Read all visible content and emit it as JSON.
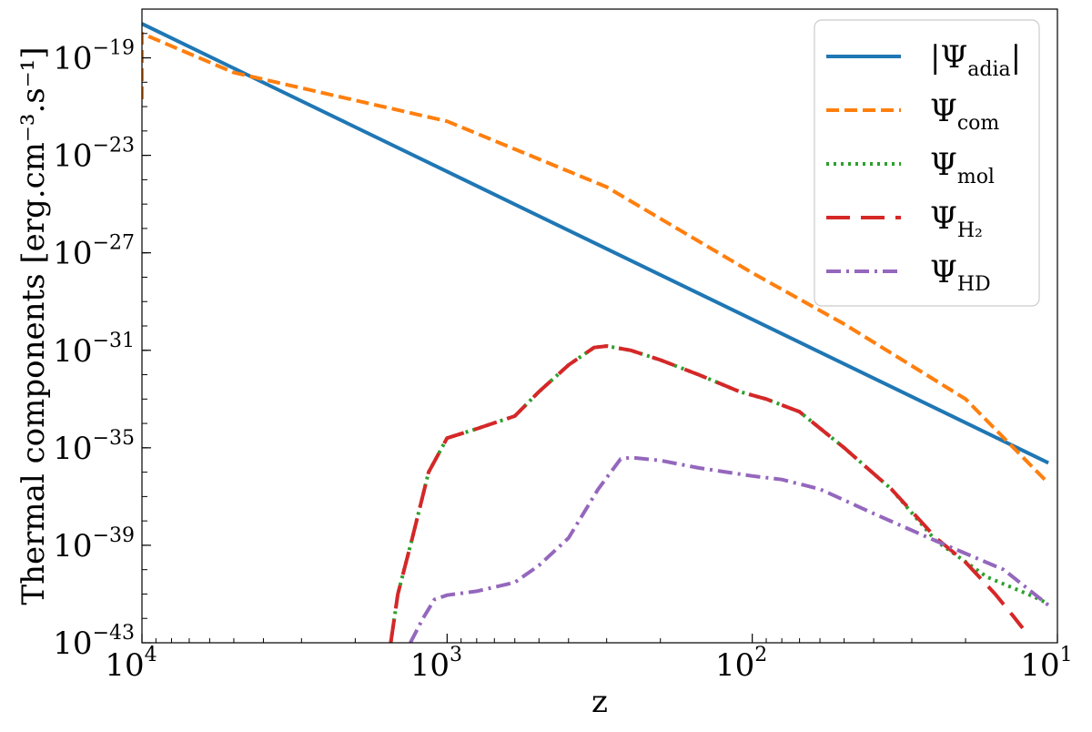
{
  "chart_data": {
    "type": "line",
    "xlabel": "z",
    "ylabel": "Thermal components [erg.cm⁻³.s⁻¹]",
    "x_scale": "log",
    "y_scale": "log",
    "x_reversed": true,
    "xlim": [
      10000,
      10
    ],
    "ylim": [
      1e-43,
      1e-17
    ],
    "x_ticks": [
      {
        "value": 10000,
        "base": "10",
        "exp": "4"
      },
      {
        "value": 1000,
        "base": "10",
        "exp": "3"
      },
      {
        "value": 100,
        "base": "10",
        "exp": "2"
      },
      {
        "value": 10,
        "base": "10",
        "exp": "1"
      }
    ],
    "y_ticks": [
      {
        "value": 1e-19,
        "base": "10",
        "exp": "−19"
      },
      {
        "value": 1e-23,
        "base": "10",
        "exp": "−23"
      },
      {
        "value": 1e-27,
        "base": "10",
        "exp": "−27"
      },
      {
        "value": 1e-31,
        "base": "10",
        "exp": "−31"
      },
      {
        "value": 1e-35,
        "base": "10",
        "exp": "−35"
      },
      {
        "value": 1e-39,
        "base": "10",
        "exp": "−39"
      },
      {
        "value": 1e-43,
        "base": "10",
        "exp": "−43"
      }
    ],
    "legend_position": "top-right",
    "series": [
      {
        "name": "|Ψadia|",
        "legend_main": "|Ψ",
        "legend_sub": "adia",
        "legend_tail": "|",
        "color": "#1f77b4",
        "dash": "solid",
        "points": [
          [
            10000,
            2.5e-18
          ],
          [
            10.7,
            2.4e-36
          ]
        ]
      },
      {
        "name": "Ψcom",
        "legend_main": "Ψ",
        "legend_sub": "com",
        "legend_tail": "",
        "color": "#ff7f0e",
        "dash": "dashed",
        "points": [
          [
            10000,
            2e-21
          ],
          [
            10000,
            1e-18
          ],
          [
            5000,
            2.5e-20
          ],
          [
            1000,
            2.5e-22
          ],
          [
            300,
            5e-25
          ],
          [
            100,
            1.5e-28
          ],
          [
            50,
            1.2e-30
          ],
          [
            20,
            1e-33
          ],
          [
            10.7,
            3.5e-37
          ]
        ]
      },
      {
        "name": "Ψmol",
        "legend_main": "Ψ",
        "legend_sub": "mol",
        "legend_tail": "",
        "color": "#2ca02c",
        "dash": "dotted",
        "points": [
          [
            1530,
            1e-43
          ],
          [
            1450,
            1e-41
          ],
          [
            1300,
            2e-39
          ],
          [
            1150,
            1e-36
          ],
          [
            1000,
            2.5e-35
          ],
          [
            800,
            6e-35
          ],
          [
            600,
            2e-34
          ],
          [
            500,
            2e-33
          ],
          [
            400,
            2.5e-32
          ],
          [
            330,
            1.3e-31
          ],
          [
            300,
            1.5e-31
          ],
          [
            250,
            1e-31
          ],
          [
            200,
            4e-32
          ],
          [
            150,
            1e-32
          ],
          [
            110,
            2e-33
          ],
          [
            90,
            1e-33
          ],
          [
            70,
            3e-34
          ],
          [
            50,
            1e-35
          ],
          [
            35,
            2e-37
          ],
          [
            25,
            1.5e-39
          ],
          [
            17,
            5e-41
          ],
          [
            12,
            8e-42
          ],
          [
            10.7,
            4e-42
          ]
        ]
      },
      {
        "name": "ΨH2",
        "legend_main": "Ψ",
        "legend_sub": "H₂",
        "legend_tail": "",
        "color": "#d62728",
        "dash": "longdash",
        "points": [
          [
            1530,
            1e-43
          ],
          [
            1450,
            1e-41
          ],
          [
            1300,
            2e-39
          ],
          [
            1150,
            1e-36
          ],
          [
            1000,
            2.5e-35
          ],
          [
            800,
            6e-35
          ],
          [
            600,
            2e-34
          ],
          [
            500,
            2e-33
          ],
          [
            400,
            2.5e-32
          ],
          [
            330,
            1.3e-31
          ],
          [
            300,
            1.5e-31
          ],
          [
            250,
            1e-31
          ],
          [
            200,
            4e-32
          ],
          [
            150,
            1e-32
          ],
          [
            110,
            2e-33
          ],
          [
            90,
            1e-33
          ],
          [
            70,
            3e-34
          ],
          [
            50,
            1e-35
          ],
          [
            35,
            2e-37
          ],
          [
            25,
            2e-39
          ],
          [
            20,
            2e-40
          ],
          [
            16,
            1e-41
          ],
          [
            14,
            1.3e-42
          ],
          [
            13,
            4e-43
          ]
        ]
      },
      {
        "name": "ΨHD",
        "legend_main": "Ψ",
        "legend_sub": "HD",
        "legend_tail": "",
        "color": "#9467bd",
        "dash": "dashdot",
        "points": [
          [
            1320,
            1e-43
          ],
          [
            1200,
            1e-42
          ],
          [
            1100,
            6e-42
          ],
          [
            1000,
            9e-42
          ],
          [
            800,
            1.3e-41
          ],
          [
            600,
            3e-41
          ],
          [
            500,
            1.5e-40
          ],
          [
            400,
            2e-39
          ],
          [
            320,
            2e-37
          ],
          [
            270,
            3.5e-36
          ],
          [
            250,
            4e-36
          ],
          [
            200,
            3e-36
          ],
          [
            150,
            1.5e-36
          ],
          [
            100,
            7e-37
          ],
          [
            80,
            5e-37
          ],
          [
            60,
            2e-37
          ],
          [
            40,
            2e-38
          ],
          [
            25,
            1.5e-39
          ],
          [
            15,
            1e-40
          ],
          [
            10.7,
            3.5e-42
          ]
        ]
      }
    ]
  }
}
